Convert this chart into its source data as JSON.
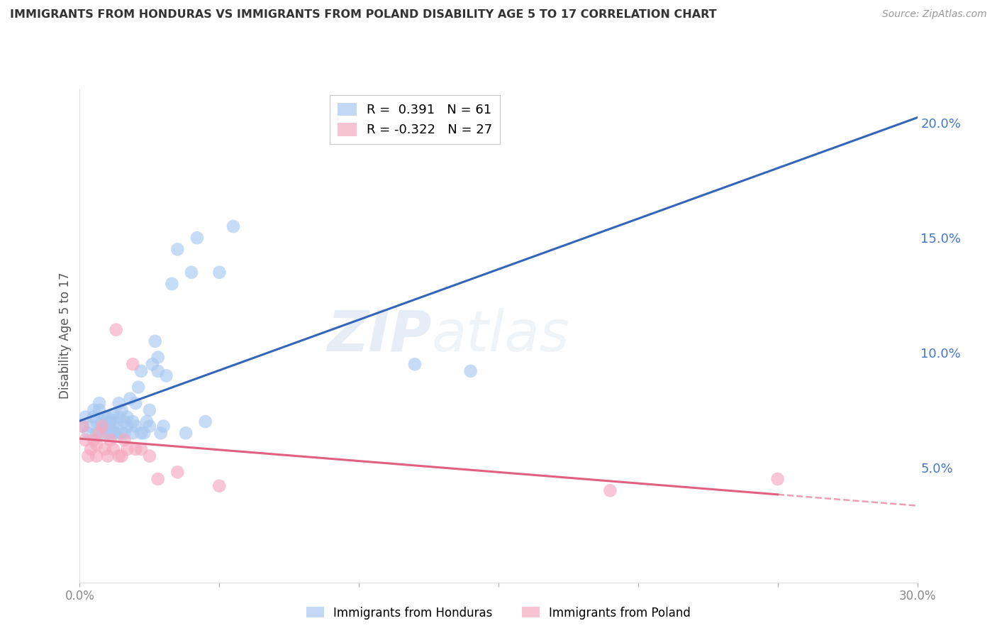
{
  "title": "IMMIGRANTS FROM HONDURAS VS IMMIGRANTS FROM POLAND DISABILITY AGE 5 TO 17 CORRELATION CHART",
  "source": "Source: ZipAtlas.com",
  "ylabel": "Disability Age 5 to 17",
  "y_ticks": [
    0.05,
    0.1,
    0.15,
    0.2
  ],
  "y_tick_labels": [
    "5.0%",
    "10.0%",
    "15.0%",
    "20.0%"
  ],
  "x_ticks": [
    0.0,
    0.05,
    0.1,
    0.15,
    0.2,
    0.25,
    0.3
  ],
  "x_tick_labels": [
    "0.0%",
    "",
    "",
    "",
    "",
    "",
    "30.0%"
  ],
  "x_min": 0.0,
  "x_max": 0.3,
  "y_min": 0.0,
  "y_max": 0.215,
  "legend1_R": "0.391",
  "legend1_N": "61",
  "legend2_R": "-0.322",
  "legend2_N": "27",
  "color_honduras": "#a8c8f0",
  "color_poland": "#f5a8c0",
  "color_line_honduras": "#3366bb",
  "color_line_poland": "#e06080",
  "watermark_zip": "ZIP",
  "watermark_atlas": "atlas",
  "background_color": "#ffffff",
  "grid_color": "#cccccc",
  "honduras_x": [
    0.001,
    0.002,
    0.003,
    0.004,
    0.005,
    0.005,
    0.006,
    0.006,
    0.007,
    0.007,
    0.008,
    0.008,
    0.009,
    0.009,
    0.01,
    0.01,
    0.01,
    0.011,
    0.011,
    0.012,
    0.012,
    0.012,
    0.013,
    0.013,
    0.014,
    0.014,
    0.015,
    0.015,
    0.016,
    0.016,
    0.017,
    0.017,
    0.018,
    0.019,
    0.019,
    0.02,
    0.02,
    0.021,
    0.022,
    0.022,
    0.023,
    0.024,
    0.025,
    0.025,
    0.026,
    0.027,
    0.028,
    0.028,
    0.029,
    0.03,
    0.031,
    0.033,
    0.035,
    0.038,
    0.04,
    0.042,
    0.045,
    0.05,
    0.055,
    0.12,
    0.14
  ],
  "honduras_y": [
    0.068,
    0.072,
    0.065,
    0.068,
    0.072,
    0.075,
    0.065,
    0.07,
    0.075,
    0.078,
    0.065,
    0.07,
    0.068,
    0.072,
    0.065,
    0.068,
    0.072,
    0.065,
    0.07,
    0.065,
    0.068,
    0.073,
    0.065,
    0.07,
    0.072,
    0.078,
    0.065,
    0.075,
    0.065,
    0.07,
    0.068,
    0.072,
    0.08,
    0.065,
    0.07,
    0.068,
    0.078,
    0.085,
    0.065,
    0.092,
    0.065,
    0.07,
    0.068,
    0.075,
    0.095,
    0.105,
    0.092,
    0.098,
    0.065,
    0.068,
    0.09,
    0.13,
    0.145,
    0.065,
    0.135,
    0.15,
    0.07,
    0.135,
    0.155,
    0.095,
    0.092
  ],
  "poland_x": [
    0.001,
    0.002,
    0.003,
    0.004,
    0.005,
    0.006,
    0.006,
    0.007,
    0.008,
    0.009,
    0.01,
    0.011,
    0.012,
    0.013,
    0.014,
    0.015,
    0.016,
    0.017,
    0.019,
    0.02,
    0.022,
    0.025,
    0.028,
    0.035,
    0.05,
    0.19,
    0.25
  ],
  "poland_y": [
    0.068,
    0.062,
    0.055,
    0.058,
    0.062,
    0.055,
    0.06,
    0.065,
    0.068,
    0.058,
    0.055,
    0.062,
    0.058,
    0.11,
    0.055,
    0.055,
    0.062,
    0.058,
    0.095,
    0.058,
    0.058,
    0.055,
    0.045,
    0.048,
    0.042,
    0.04,
    0.045
  ]
}
